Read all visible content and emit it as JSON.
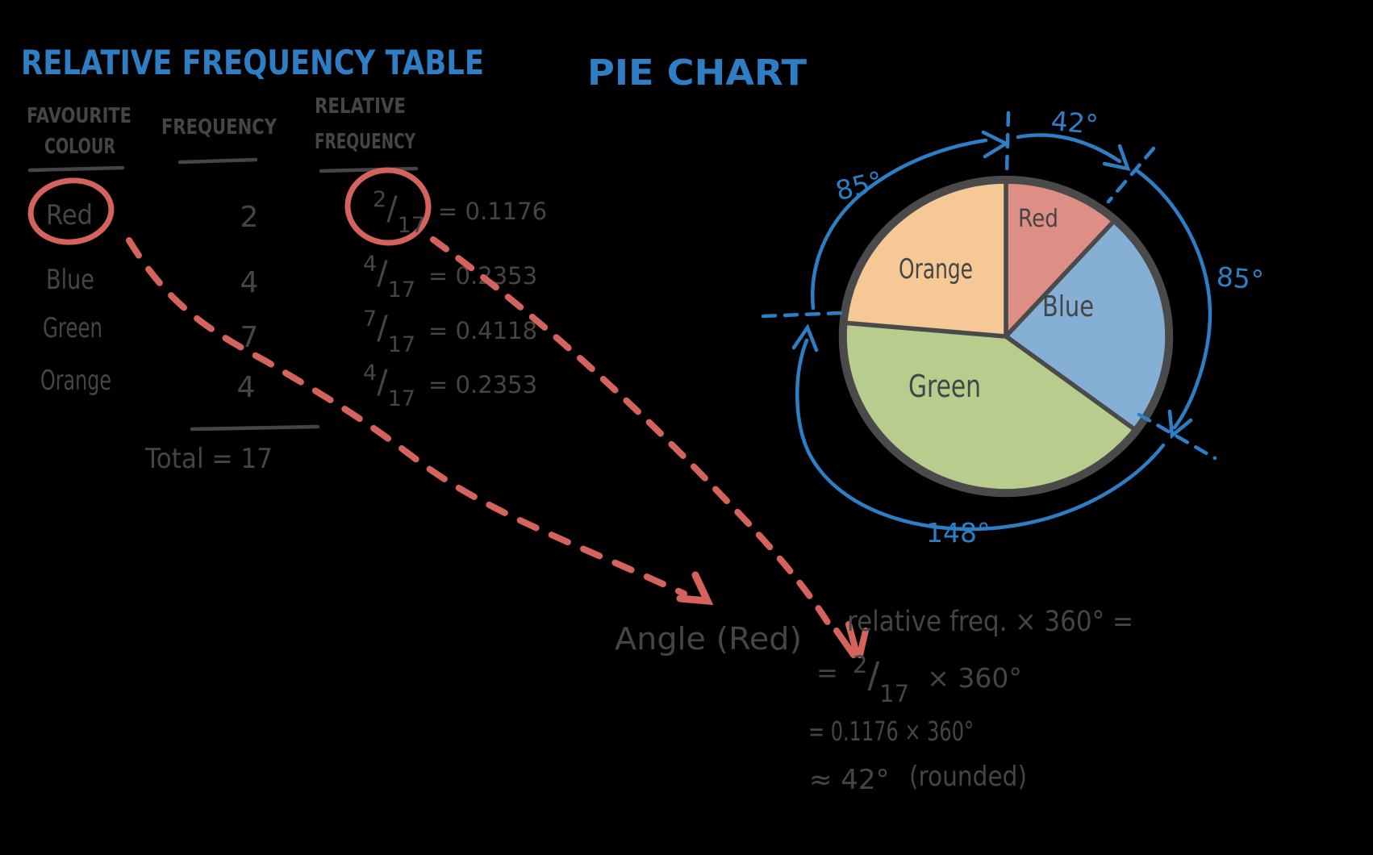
{
  "colors": {
    "background": "#000000",
    "marker_blue": "#2d7ec4",
    "marker_red": "#d5635d",
    "ink": "#454545",
    "pie_outline": "#4a4a4a"
  },
  "table_title": "RELATIVE FREQUENCY TABLE",
  "pie_title": "PIE CHART",
  "table": {
    "col1_line1": "FAVOURITE",
    "col1_line2": "COLOUR",
    "col2": "FREQUENCY",
    "col3_line1": "RELATIVE",
    "col3_line2": "FREQUENCY",
    "rows": [
      {
        "colour": "Red",
        "freq": "2",
        "num": "2",
        "slash": "/",
        "den": "17",
        "eq": "= 0.1176"
      },
      {
        "colour": "Blue",
        "freq": "4",
        "num": "4",
        "slash": "/",
        "den": "17",
        "eq": "= 0.2353"
      },
      {
        "colour": "Green",
        "freq": "7",
        "num": "7",
        "slash": "/",
        "den": "17",
        "eq": "= 0.4118"
      },
      {
        "colour": "Orange",
        "freq": "4",
        "num": "4",
        "slash": "/",
        "den": "17",
        "eq": "= 0.2353"
      }
    ],
    "total": "Total = 17"
  },
  "pie": {
    "slice_labels": {
      "red": "Red",
      "blue": "Blue",
      "green": "Green",
      "orange": "Orange"
    },
    "angle_labels": {
      "red": "42°",
      "blue": "85°",
      "green": "148°",
      "orange": "85°"
    }
  },
  "formula": {
    "lhs": "Angle (Red)",
    "rhs1": "relative freq. × 360° =",
    "eq2": "=",
    "f_num": "2",
    "f_slash": "/",
    "f_den": "17",
    "times1": "× 360°",
    "line3": "= 0.1176 × 360°",
    "line4a": "≈ 42°",
    "line4b": "(rounded)"
  },
  "chart_data": {
    "type": "pie",
    "title": "Pie Chart",
    "categories": [
      "Red",
      "Blue",
      "Green",
      "Orange"
    ],
    "frequencies": [
      2,
      4,
      7,
      4
    ],
    "total_frequency": 17,
    "relative_frequencies": [
      0.1176,
      0.2353,
      0.4118,
      0.2353
    ],
    "angles_deg": [
      42,
      85,
      148,
      85
    ],
    "start_angle": "top",
    "direction": "clockwise",
    "slice_colors": [
      "#dd8f86",
      "#85afd4",
      "#b8cc8e",
      "#f6c896"
    ],
    "annotation": "Angle (Red) = relative freq. × 360° = 2/17 × 360° = 0.1176 × 360° ≈ 42° (rounded)"
  }
}
